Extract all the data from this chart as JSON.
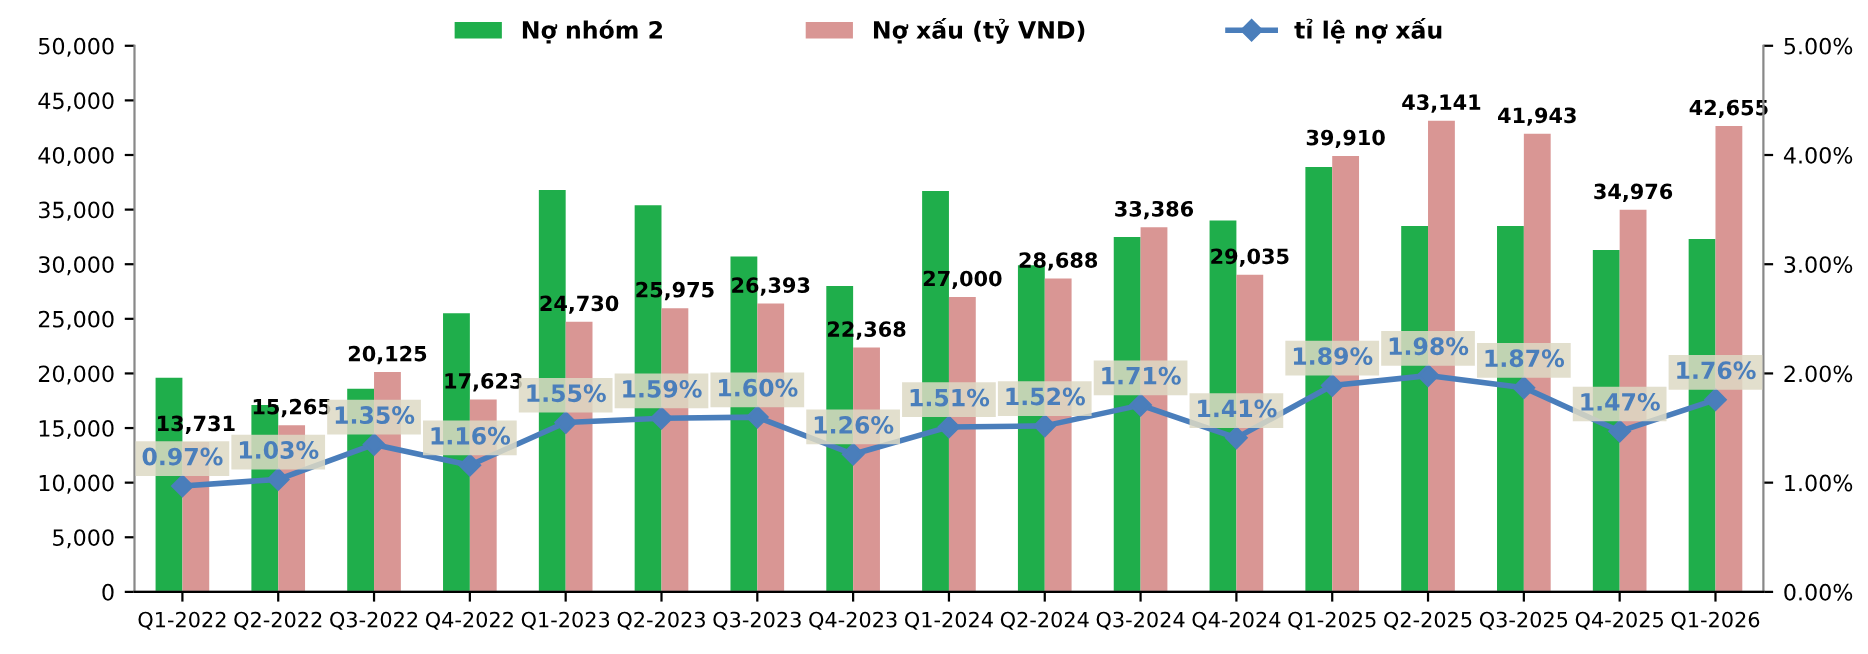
{
  "chart_data": {
    "type": "bar",
    "categories": [
      "Q1-2022",
      "Q2-2022",
      "Q3-2022",
      "Q4-2022",
      "Q1-2023",
      "Q2-2023",
      "Q3-2023",
      "Q4-2023",
      "Q1-2024",
      "Q2-2024",
      "Q3-2024",
      "Q4-2024",
      "Q1-2025",
      "Q2-2025",
      "Q3-2025",
      "Q4-2025",
      "Q1-2026"
    ],
    "series": [
      {
        "name": "Nợ nhóm 2",
        "color": "#1fae4b",
        "values": [
          19600,
          17100,
          18600,
          25500,
          36800,
          35400,
          30700,
          28000,
          36700,
          29900,
          32500,
          34000,
          38900,
          33500,
          33500,
          31300,
          32300
        ]
      },
      {
        "name": "Nợ xấu (tỷ VND)",
        "color": "#d99694",
        "values": [
          13731,
          15265,
          20125,
          17623,
          24730,
          25975,
          26393,
          22368,
          27000,
          28688,
          33386,
          29035,
          39910,
          43141,
          41943,
          34976,
          42655
        ],
        "value_labels": [
          "13,731",
          "15,265",
          "20,125",
          "17,623",
          "24,730",
          "25,975",
          "26,393",
          "22,368",
          "27,000",
          "28,688",
          "33,386",
          "29,035",
          "39,910",
          "43,141",
          "41,943",
          "34,976",
          "42,655"
        ]
      },
      {
        "name": "tỉ lệ nợ xấu",
        "type": "line",
        "axis": "y2",
        "color": "#4a7ebb",
        "marker": "diamond",
        "values": [
          0.97,
          1.03,
          1.35,
          1.16,
          1.55,
          1.59,
          1.6,
          1.26,
          1.51,
          1.52,
          1.71,
          1.41,
          1.89,
          1.98,
          1.87,
          1.47,
          1.76
        ],
        "value_labels": [
          "0.97%",
          "1.03%",
          "1.35%",
          "1.16%",
          "1.55%",
          "1.59%",
          "1.60%",
          "1.26%",
          "1.51%",
          "1.52%",
          "1.71%",
          "1.41%",
          "1.89%",
          "1.98%",
          "1.87%",
          "1.47%",
          "1.76%"
        ]
      }
    ],
    "ylim": [
      0,
      50000
    ],
    "yticks": [
      {
        "value": 0,
        "label": "0"
      },
      {
        "value": 5000,
        "label": "5,000"
      },
      {
        "value": 10000,
        "label": "10,000"
      },
      {
        "value": 15000,
        "label": "15,000"
      },
      {
        "value": 20000,
        "label": "20,000"
      },
      {
        "value": 25000,
        "label": "25,000"
      },
      {
        "value": 30000,
        "label": "30,000"
      },
      {
        "value": 35000,
        "label": "35,000"
      },
      {
        "value": 40000,
        "label": "40,000"
      },
      {
        "value": 45000,
        "label": "45,000"
      },
      {
        "value": 50000,
        "label": "50,000"
      }
    ],
    "y2lim": [
      0,
      5
    ],
    "y2ticks": [
      {
        "value": 0,
        "label": "0.00%"
      },
      {
        "value": 1,
        "label": "1.00%"
      },
      {
        "value": 2,
        "label": "2.00%"
      },
      {
        "value": 3,
        "label": "3.00%"
      },
      {
        "value": 4,
        "label": "4.00%"
      },
      {
        "value": 5,
        "label": "5.00%"
      }
    ],
    "grid": false,
    "legend": "top"
  }
}
